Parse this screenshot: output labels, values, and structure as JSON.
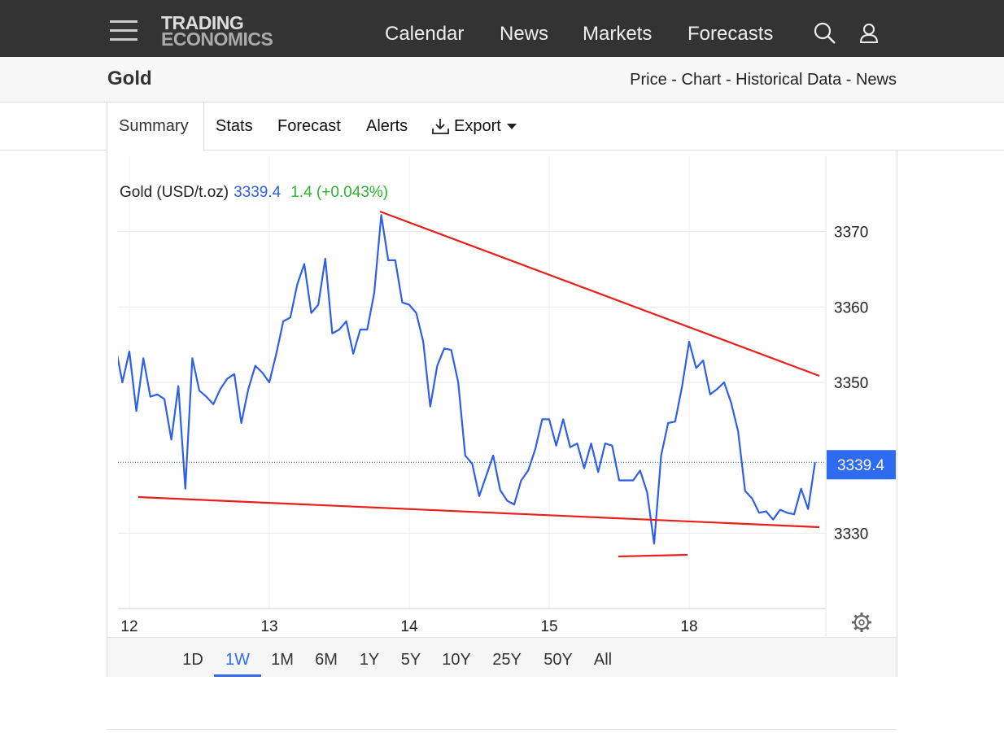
{
  "nav": {
    "logo": [
      "TRADING",
      "ECONOMICS"
    ],
    "links": [
      "Calendar",
      "News",
      "Markets",
      "Forecasts"
    ]
  },
  "header": {
    "title": "Gold",
    "breadcrumb": "Price - Chart - Historical Data - News"
  },
  "tabs": [
    "Summary",
    "Stats",
    "Forecast",
    "Alerts",
    "Export"
  ],
  "chart_data": {
    "type": "line",
    "change": "1.4 (+0.043%)",
    "series": [
      {
        "name": "Gold (USD/t.oz)",
        "color": "#2f5fe8",
        "values": [
          3354.9,
          3350.0,
          3354.1,
          3346.2,
          3353.2,
          3348.1,
          3348.4,
          3347.8,
          3342.4,
          3349.5,
          3335.9,
          3353.2,
          3348.9,
          3348.1,
          3347.1,
          3349.1,
          3350.5,
          3351.1,
          3344.6,
          3349.1,
          3352.2,
          3351.3,
          3350.0,
          3353.8,
          3358.1,
          3358.6,
          3363.0,
          3365.7,
          3359.2,
          3360.3,
          3366.4,
          3356.5,
          3357.0,
          3358.1,
          3353.8,
          3357.0,
          3357.0,
          3361.9,
          3372.2,
          3366.2,
          3366.2,
          3360.6,
          3360.3,
          3359.2,
          3355.4,
          3346.8,
          3352.2,
          3354.5,
          3354.3,
          3350.0,
          3340.3,
          3339.2,
          3334.9,
          3337.6,
          3340.3,
          3335.7,
          3334.3,
          3333.8,
          3337.0,
          3338.3,
          3341.1,
          3345.1,
          3345.1,
          3341.6,
          3345.1,
          3341.4,
          3341.9,
          3338.6,
          3341.9,
          3338.1,
          3341.9,
          3341.6,
          3337.0,
          3337.0,
          3337.0,
          3338.3,
          3335.4,
          3328.6,
          3340.3,
          3344.6,
          3344.8,
          3349.5,
          3355.4,
          3351.9,
          3352.9,
          3348.4,
          3349.1,
          3350.0,
          3347.3,
          3343.5,
          3335.6,
          3334.6,
          3332.7,
          3332.9,
          3331.8,
          3333.1,
          3332.7,
          3332.5,
          3335.9,
          3333.2,
          3339.4
        ]
      }
    ],
    "categories": [
      null,
      null,
      "12",
      null,
      null,
      null,
      null,
      null,
      null,
      null,
      null,
      null,
      null,
      null,
      null,
      null,
      null,
      null,
      null,
      null,
      null,
      null,
      "13",
      null,
      null,
      null,
      null,
      null,
      null,
      null,
      null,
      null,
      null,
      null,
      null,
      null,
      null,
      null,
      null,
      null,
      null,
      null,
      "14",
      null,
      null,
      null,
      null,
      null,
      null,
      null,
      null,
      null,
      null,
      null,
      null,
      null,
      null,
      null,
      null,
      null,
      null,
      null,
      "15",
      null,
      null,
      null,
      null,
      null,
      null,
      null,
      null,
      null,
      null,
      null,
      null,
      null,
      null,
      null,
      null,
      null,
      null,
      null,
      "18",
      null,
      null,
      null,
      null,
      null,
      null,
      null,
      null,
      null,
      null,
      null,
      null,
      null,
      null,
      null,
      null,
      null,
      null
    ],
    "ylim": [
      3320,
      3380
    ],
    "yticks": [
      3330,
      3350,
      3360,
      3370
    ],
    "grid": true,
    "marker_color": "#2f6bf0"
  },
  "ranges": [
    "1D",
    "1W",
    "1M",
    "6M",
    "1Y",
    "5Y",
    "10Y",
    "25Y",
    "50Y",
    "All"
  ],
  "selected_range": "1W"
}
